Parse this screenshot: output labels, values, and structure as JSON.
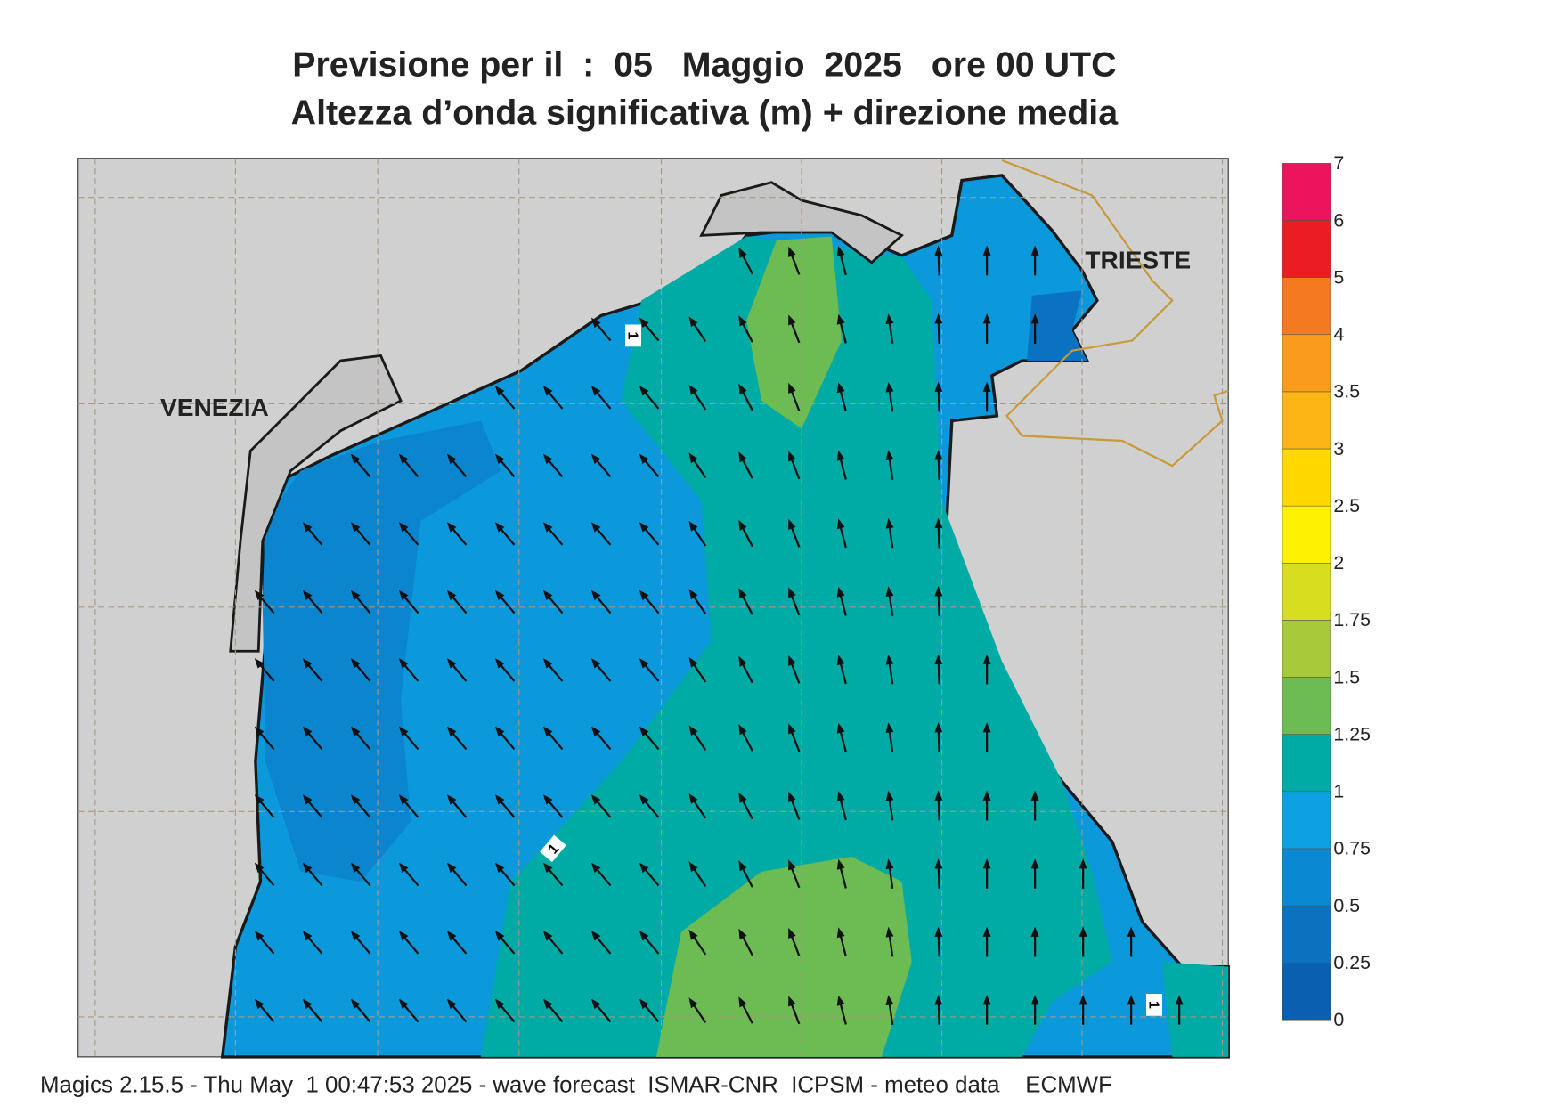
{
  "title": [
    "Previsione per il  :  05   Maggio  2025   ore 00 UTC",
    "Altezza d’onda significativa (m) + direzione media"
  ],
  "places": [
    "VENEZIA",
    "TRIESTE"
  ],
  "contour_labels": [
    "1",
    "1",
    "1"
  ],
  "colorbar": {
    "ticks": [
      0,
      0.25,
      0.5,
      0.75,
      1,
      1.25,
      1.5,
      1.75,
      2,
      2.5,
      3,
      3.5,
      4,
      5,
      6,
      7
    ],
    "colors": [
      "#0a5fb0",
      "#0b72c0",
      "#0a88d2",
      "#0ca0e0",
      "#00aaa5",
      "#6cbb53",
      "#a8c93a",
      "#d7de20",
      "#fff200",
      "#ffd800",
      "#fdb515",
      "#f99b1c",
      "#f47920",
      "#ec1c24",
      "#ec145c"
    ]
  },
  "footer": "Magics 2.15.5 - Thu May  1 00:47:53 2025 - wave forecast  ISMAR-CNR  ICPSM - meteo data    ECMWF"
}
